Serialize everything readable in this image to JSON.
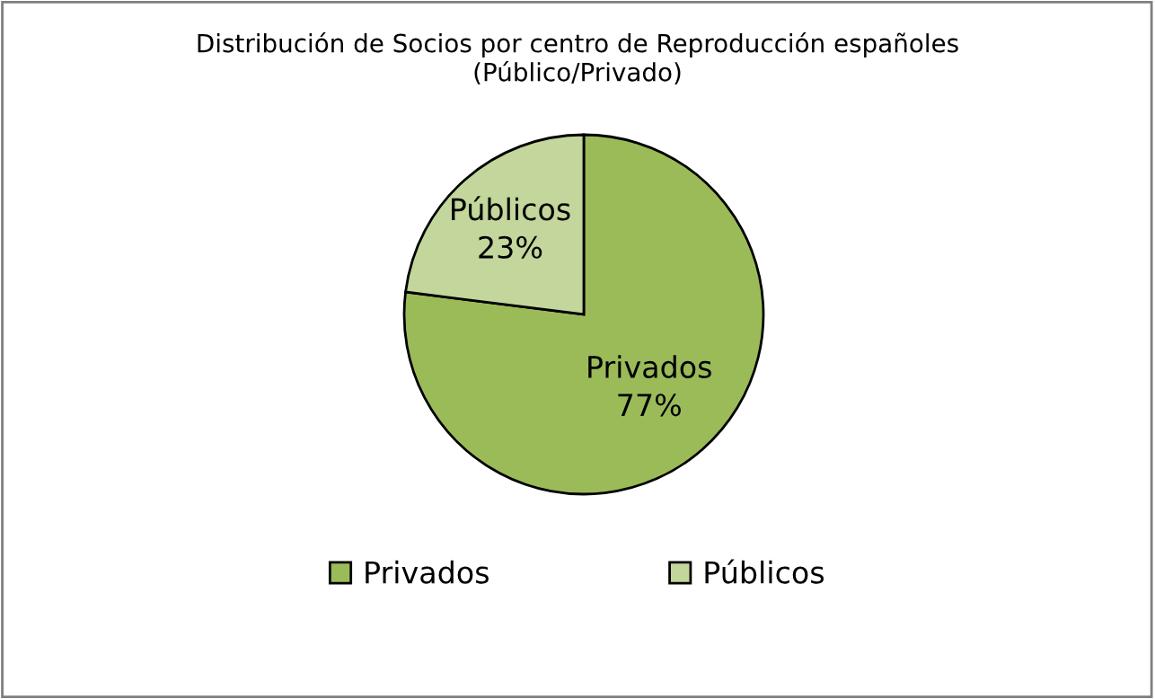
{
  "chart_data": {
    "type": "pie",
    "title": "Distribución de Socios por centro de Reproducción españoles\n(Público/Privado)",
    "categories": [
      "Privados",
      "Públicos"
    ],
    "values": [
      77,
      23
    ],
    "value_labels": [
      "77%",
      "23%"
    ],
    "colors": [
      "#9bbb59",
      "#c3d69b"
    ],
    "legend": "bottom"
  }
}
